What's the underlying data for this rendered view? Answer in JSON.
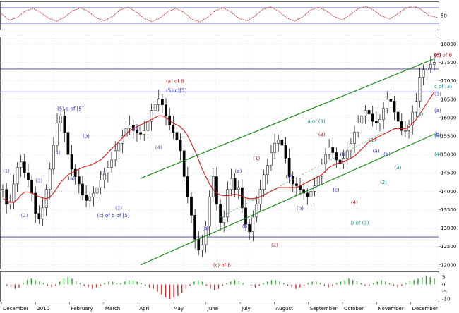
{
  "chart_data": [
    {
      "type": "line",
      "panel": "oscillator",
      "y_ticks": [
        "50"
      ],
      "series": [
        {
          "values": [
            58,
            30,
            42,
            68,
            80,
            62,
            38,
            26,
            44,
            70,
            82,
            66,
            40,
            28,
            46,
            74,
            84,
            66,
            38,
            24,
            40,
            66,
            80,
            64,
            36,
            22,
            42,
            70,
            82,
            64,
            38,
            28,
            48,
            76,
            86,
            68,
            40,
            26,
            44,
            72,
            84,
            70,
            46,
            32,
            52,
            78,
            88,
            72,
            48,
            36,
            56,
            80,
            90,
            74,
            50,
            42
          ]
        }
      ]
    },
    {
      "type": "line",
      "panel": "price",
      "x_labels": [
        "December",
        "2010",
        "February",
        "March",
        "April",
        "May",
        "June",
        "July",
        "August",
        "September",
        "October",
        "November",
        "December"
      ],
      "y_ticks": [
        "12000",
        "12500",
        "13000",
        "13500",
        "14000",
        "14500",
        "15000",
        "15500",
        "16000",
        "16500",
        "17000",
        "17500",
        "18000"
      ],
      "ylim": [
        11900,
        18200
      ],
      "reference_levels": [
        12760,
        16700,
        17320
      ],
      "ohlc_close": [
        14050,
        13650,
        13700,
        14200,
        14650,
        14800,
        14500,
        14300,
        13950,
        13400,
        13250,
        13550,
        14050,
        14600,
        15250,
        15850,
        16050,
        15600,
        15000,
        14600,
        14400,
        14200,
        13900,
        13750,
        13850,
        13950,
        14100,
        14300,
        14500,
        14650,
        14850,
        15100,
        15300,
        15500,
        15700,
        15800,
        15650,
        15600,
        15550,
        15650,
        15900,
        16200,
        16350,
        16500,
        16350,
        16050,
        15800,
        15600,
        15400,
        15100,
        14400,
        13850,
        13350,
        12700,
        12400,
        12550,
        13050,
        13850,
        14400,
        13650,
        13150,
        13300,
        14050,
        14350,
        14050,
        14100,
        13550,
        13100,
        12900,
        13300,
        13650,
        14050,
        14450,
        14700,
        15050,
        15300,
        15400,
        15250,
        14900,
        14400,
        14200,
        14150,
        14050,
        13950,
        13850,
        14000,
        14150,
        14400,
        14750,
        15000,
        15200,
        15050,
        14850,
        14750,
        14900,
        15100,
        15300,
        15600,
        15850,
        16050,
        16200,
        16100,
        15900,
        15850,
        15950,
        16250,
        16500,
        16450,
        16150,
        15900,
        15650,
        15650,
        15800,
        16150,
        16450,
        17100,
        17300,
        17350,
        17450,
        17500
      ],
      "ma_values": [
        13800,
        13750,
        13700,
        13700,
        13780,
        13900,
        13980,
        13980,
        13950,
        13900,
        13850,
        13820,
        13800,
        13850,
        13950,
        14100,
        14250,
        14350,
        14450,
        14500,
        14550,
        14600,
        14650,
        14680,
        14700,
        14750,
        14800,
        14850,
        14950,
        15050,
        15150,
        15250,
        15350,
        15450,
        15550,
        15650,
        15700,
        15750,
        15800,
        15850,
        15900,
        15950,
        16000,
        16050,
        16050,
        16000,
        15920,
        15850,
        15800,
        15750,
        15650,
        15500,
        15300,
        15100,
        14850,
        14600,
        14400,
        14200,
        14050,
        13950,
        13900,
        13880,
        13880,
        13900,
        13920,
        13900,
        13860,
        13820,
        13800,
        13800,
        13820,
        13850,
        13900,
        13950,
        14000,
        14050,
        14100,
        14100,
        14100,
        14100,
        14100,
        14100,
        14150,
        14200,
        14250,
        14300,
        14350,
        14400,
        14450,
        14550,
        14650,
        14700,
        14750,
        14780,
        14800,
        14850,
        14900,
        14950,
        15050,
        15150,
        15250,
        15350,
        15400,
        15450,
        15500,
        15550,
        15600,
        15650,
        15700,
        15700,
        15700,
        15700,
        15750,
        15850,
        15950,
        16100,
        16250,
        16400,
        16550,
        16700
      ],
      "trend_channel": {
        "lower_line": [
          [
            38,
            12000
          ],
          [
            119,
            15550
          ]
        ],
        "upper_line": [
          [
            38,
            14350
          ],
          [
            119,
            17600
          ]
        ],
        "mid_line": [
          [
            60,
            13300
          ],
          [
            105,
            15600
          ]
        ]
      },
      "annotations": [
        {
          "text": "(5) a of [5]",
          "x": 15,
          "y": 16200,
          "color": "#1f1f9e"
        },
        {
          "text": "(4)",
          "x": 14,
          "y": 15000,
          "color": "#5a5ac8"
        },
        {
          "text": "(b)",
          "x": 22,
          "y": 15450,
          "color": "#1f1f9e"
        },
        {
          "text": "(a)",
          "x": 18,
          "y": 14300,
          "color": "#1f1f9e"
        },
        {
          "text": "(2)",
          "x": 5,
          "y": 13300,
          "color": "#5a5ac8"
        },
        {
          "text": "(1)",
          "x": 0,
          "y": 14500,
          "color": "#5a5ac8"
        },
        {
          "text": "(3)",
          "x": 9,
          "y": 14250,
          "color": "#5a5ac8"
        },
        {
          "text": "(c) of b of [5]",
          "x": 26,
          "y": 13300,
          "color": "#1f1f9e"
        },
        {
          "text": "(1)",
          "x": 27,
          "y": 14450,
          "color": "#5a5ac8"
        },
        {
          "text": "(2)",
          "x": 31,
          "y": 13500,
          "color": "#5a5ac8"
        },
        {
          "text": "(3)",
          "x": 36,
          "y": 15650,
          "color": "#5a5ac8"
        },
        {
          "text": "(4)",
          "x": 42,
          "y": 15150,
          "color": "#5a5ac8"
        },
        {
          "text": "(a) of B",
          "x": 45,
          "y": 16950,
          "color": "#b02020"
        },
        {
          "text": "(5)(c)[5]",
          "x": 45,
          "y": 16700,
          "color": "#1f1f9e"
        },
        {
          "text": "(a)",
          "x": 55,
          "y": 12950,
          "color": "#1f1f9e"
        },
        {
          "text": "(c) of B",
          "x": 58,
          "y": 11950,
          "color": "#b02020"
        },
        {
          "text": "(a)",
          "x": 64,
          "y": 14500,
          "color": "#1f1f9e"
        },
        {
          "text": "(b)",
          "x": 66,
          "y": 13000,
          "color": "#1f1f9e"
        },
        {
          "text": "(1)",
          "x": 69,
          "y": 14850,
          "color": "#b02020"
        },
        {
          "text": "(2)",
          "x": 74,
          "y": 12500,
          "color": "#b02020"
        },
        {
          "text": "(a)",
          "x": 78,
          "y": 14350,
          "color": "#1f1f9e"
        },
        {
          "text": "(b)",
          "x": 81,
          "y": 13500,
          "color": "#1f1f9e"
        },
        {
          "text": "a of (3)",
          "x": 84,
          "y": 15850,
          "color": "#1a8f8f"
        },
        {
          "text": "(3)",
          "x": 87,
          "y": 15500,
          "color": "#b02020"
        },
        {
          "text": "(b)",
          "x": 93,
          "y": 14950,
          "color": "#1f1f9e"
        },
        {
          "text": "(c)",
          "x": 91,
          "y": 14000,
          "color": "#1f1f9e"
        },
        {
          "text": "(4)",
          "x": 96,
          "y": 13650,
          "color": "#b02020"
        },
        {
          "text": "b of (3)",
          "x": 96,
          "y": 13100,
          "color": "#1a8f8f"
        },
        {
          "text": "(1)",
          "x": 101,
          "y": 15350,
          "color": "#1a8f8f"
        },
        {
          "text": "(2)",
          "x": 104,
          "y": 14200,
          "color": "#1a8f8f"
        },
        {
          "text": "(a)",
          "x": 102,
          "y": 15050,
          "color": "#1f1f9e"
        },
        {
          "text": "(b)",
          "x": 105,
          "y": 14950,
          "color": "#1f1f9e"
        },
        {
          "text": "(3)",
          "x": 108,
          "y": 14600,
          "color": "#1a8f8f"
        },
        {
          "text": "(3)",
          "x": 114,
          "y": 16050,
          "color": "#1a8f8f"
        },
        {
          "text": "(4)",
          "x": 119,
          "y": 15450,
          "color": "#1a8f8f"
        },
        {
          "text": "c of (3)",
          "x": 119,
          "y": 16800,
          "color": "#1a8f8f"
        },
        {
          "text": "(3)",
          "x": 125,
          "y": 16600,
          "color": "#5a5ac8"
        },
        {
          "text": "(a)",
          "x": 126,
          "y": 16150,
          "color": "#1f1f9e"
        },
        {
          "text": "(b)",
          "x": 131,
          "y": 15500,
          "color": "#1f1f9e"
        },
        {
          "text": "(4)",
          "x": 132,
          "y": 14950,
          "color": "#1a8f8f"
        },
        {
          "text": "(5)",
          "x": 124,
          "y": 17650,
          "color": "#5a5ac8"
        },
        {
          "text": "(c)",
          "x": 127,
          "y": 17650,
          "color": "#1f1f9e"
        },
        {
          "text": "(5)",
          "x": 130,
          "y": 17650,
          "color": "#b02020"
        },
        {
          "text": "(c) of B",
          "x": 134,
          "y": 17650,
          "color": "#b02020"
        }
      ]
    },
    {
      "type": "bar",
      "panel": "histogram",
      "y_ticks": [
        "5",
        "0",
        "-5",
        "-10"
      ],
      "ylim": [
        -12,
        9
      ],
      "values": [
        0,
        -1,
        -2,
        -3,
        -2,
        1,
        3,
        4,
        3,
        2,
        1,
        -1,
        -2,
        -1,
        2,
        4,
        5,
        4,
        2,
        1,
        -1,
        -2,
        -3,
        -2,
        -1,
        1,
        2,
        2,
        1,
        1,
        2,
        3,
        3,
        2,
        1,
        -1,
        -2,
        -3,
        -5,
        -7,
        -9,
        -10,
        -9,
        -8,
        -6,
        -3,
        -1,
        2,
        3,
        2,
        -1,
        -3,
        -4,
        -3,
        -1,
        1,
        2,
        3,
        2,
        1,
        0,
        -1,
        -2,
        -1,
        1,
        2,
        3,
        3,
        2,
        1,
        -1,
        -2,
        -3,
        -2,
        -1,
        1,
        2,
        2,
        1,
        -1,
        -2,
        -1,
        1,
        2,
        3,
        4,
        3,
        2,
        1,
        -1,
        -1,
        1,
        2,
        3,
        2,
        1,
        -1,
        -2,
        -1,
        1,
        2,
        3,
        4,
        5,
        6,
        5,
        4
      ]
    }
  ]
}
